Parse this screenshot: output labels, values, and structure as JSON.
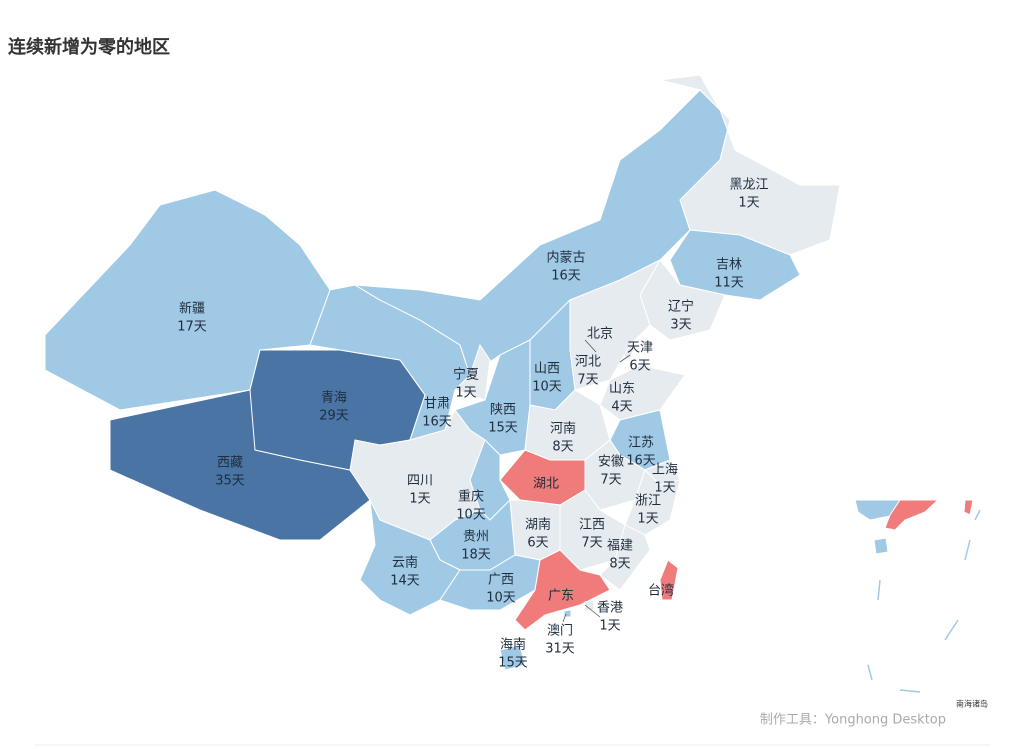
{
  "chart_data": {
    "type": "map",
    "title": "连续新增为零的地区",
    "regions": [
      {
        "name": "新疆",
        "value": 17,
        "value_label": "17天",
        "color": "#a0c9e6"
      },
      {
        "name": "西藏",
        "value": 35,
        "value_label": "35天",
        "color": "#4a74a3"
      },
      {
        "name": "青海",
        "value": 29,
        "value_label": "29天",
        "color": "#4a74a3"
      },
      {
        "name": "甘肃",
        "value": 16,
        "value_label": "16天",
        "color": "#a0c9e6"
      },
      {
        "name": "内蒙古",
        "value": 16,
        "value_label": "16天",
        "color": "#a0c9e6"
      },
      {
        "name": "黑龙江",
        "value": 1,
        "value_label": "1天",
        "color": "#e6ebf0"
      },
      {
        "name": "吉林",
        "value": 11,
        "value_label": "11天",
        "color": "#a0c9e6"
      },
      {
        "name": "辽宁",
        "value": 3,
        "value_label": "3天",
        "color": "#e6ebf0"
      },
      {
        "name": "北京",
        "color": "#f07b7b"
      },
      {
        "name": "天津",
        "value": 6,
        "value_label": "6天",
        "color": "#e6ebf0"
      },
      {
        "name": "河北",
        "value": 7,
        "value_label": "7天",
        "color": "#e6ebf0"
      },
      {
        "name": "山西",
        "value": 10,
        "value_label": "10天",
        "color": "#a0c9e6"
      },
      {
        "name": "宁夏",
        "value": 1,
        "value_label": "1天",
        "color": "#e6ebf0"
      },
      {
        "name": "陕西",
        "value": 15,
        "value_label": "15天",
        "color": "#a0c9e6"
      },
      {
        "name": "山东",
        "value": 4,
        "value_label": "4天",
        "color": "#e6ebf0"
      },
      {
        "name": "河南",
        "value": 8,
        "value_label": "8天",
        "color": "#e6ebf0"
      },
      {
        "name": "江苏",
        "value": 16,
        "value_label": "16天",
        "color": "#a0c9e6"
      },
      {
        "name": "安徽",
        "value": 7,
        "value_label": "7天",
        "color": "#e6ebf0"
      },
      {
        "name": "上海",
        "value": 1,
        "value_label": "1天",
        "color": "#e6ebf0"
      },
      {
        "name": "湖北",
        "color": "#f07b7b"
      },
      {
        "name": "四川",
        "value": 1,
        "value_label": "1天",
        "color": "#e6ebf0"
      },
      {
        "name": "重庆",
        "value": 10,
        "value_label": "10天",
        "color": "#a0c9e6"
      },
      {
        "name": "浙江",
        "value": 1,
        "value_label": "1天",
        "color": "#e6ebf0"
      },
      {
        "name": "湖南",
        "value": 6,
        "value_label": "6天",
        "color": "#e6ebf0"
      },
      {
        "name": "江西",
        "value": 7,
        "value_label": "7天",
        "color": "#e6ebf0"
      },
      {
        "name": "贵州",
        "value": 18,
        "value_label": "18天",
        "color": "#a0c9e6"
      },
      {
        "name": "福建",
        "value": 8,
        "value_label": "8天",
        "color": "#e6ebf0"
      },
      {
        "name": "云南",
        "value": 14,
        "value_label": "14天",
        "color": "#a0c9e6"
      },
      {
        "name": "广西",
        "value": 10,
        "value_label": "10天",
        "color": "#a0c9e6"
      },
      {
        "name": "广东",
        "color": "#f07b7b"
      },
      {
        "name": "香港",
        "value": 1,
        "value_label": "1天",
        "color": "#e6ebf0"
      },
      {
        "name": "澳门",
        "value": 31,
        "value_label": "31天",
        "color": "#a0c9e6"
      },
      {
        "name": "台湾",
        "color": "#f07b7b"
      },
      {
        "name": "海南",
        "value": 15,
        "value_label": "15天",
        "color": "#a0c9e6"
      }
    ],
    "inset_label": "南海诸岛",
    "source": "制作工具：Yonghong Desktop"
  }
}
